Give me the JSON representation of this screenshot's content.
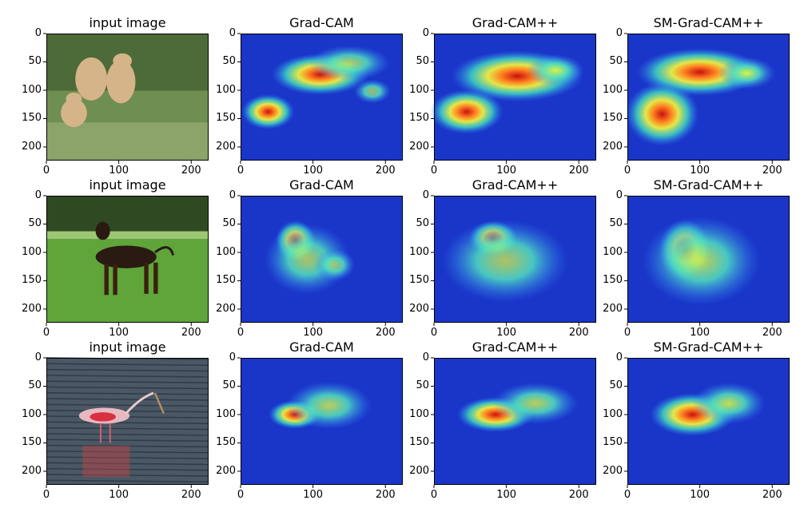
{
  "figure": {
    "rows": [
      {
        "subject": "lion cubs",
        "titles": [
          "input image",
          "Grad-CAM",
          "Grad-CAM++",
          "SM-Grad-CAM++"
        ]
      },
      {
        "subject": "dog",
        "titles": [
          "input image",
          "Grad-CAM",
          "Grad-CAM++",
          "SM-Grad-CAM++"
        ]
      },
      {
        "subject": "spoonbill",
        "titles": [
          "input image",
          "Grad-CAM",
          "Grad-CAM++",
          "SM-Grad-CAM++"
        ]
      }
    ],
    "axes": {
      "x_ticks": [
        "0",
        "100",
        "200"
      ],
      "y_ticks": [
        "0",
        "50",
        "100",
        "150",
        "200"
      ],
      "xlim": [
        0,
        224
      ],
      "ylim": [
        224,
        0
      ]
    },
    "colormap": "jet",
    "colors": {
      "heat_low": "#1a36c8",
      "heat_mid": "#40e0c0",
      "heat_high": "#d81818"
    }
  }
}
